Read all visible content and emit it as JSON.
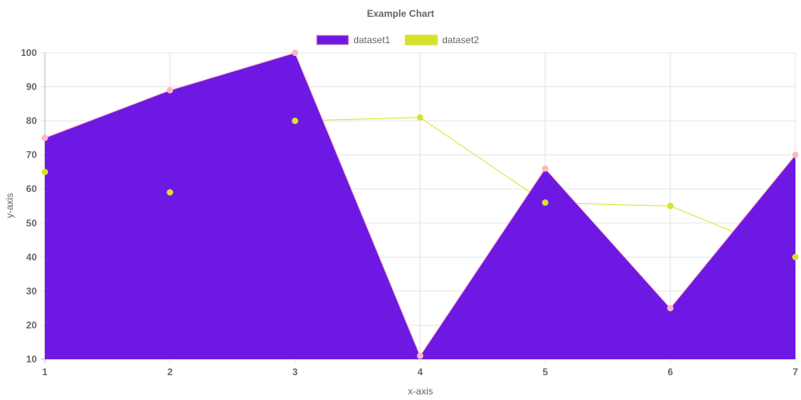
{
  "chart_data": {
    "type": "line",
    "title": "Example Chart",
    "xlabel": "x-axis",
    "ylabel": "y-axis",
    "x": [
      1,
      2,
      3,
      4,
      5,
      6,
      7
    ],
    "xlim": [
      1,
      7
    ],
    "ylim": [
      10,
      100
    ],
    "yticks": [
      10,
      20,
      30,
      40,
      50,
      60,
      70,
      80,
      90,
      100
    ],
    "grid": true,
    "legend_position": "top",
    "series": [
      {
        "name": "dataset1",
        "values": [
          75,
          89,
          100,
          11,
          66,
          25,
          70
        ],
        "fill": true,
        "fill_color": "#6e19e3",
        "line_color": "#ffb6c1",
        "point_color": "#ffb6c1"
      },
      {
        "name": "dataset2",
        "values": [
          65,
          59,
          80,
          81,
          56,
          55,
          40
        ],
        "fill": false,
        "legend_color": "#d8e22e",
        "line_color": "#d8e22e",
        "point_color": "#d8e22e"
      }
    ]
  }
}
